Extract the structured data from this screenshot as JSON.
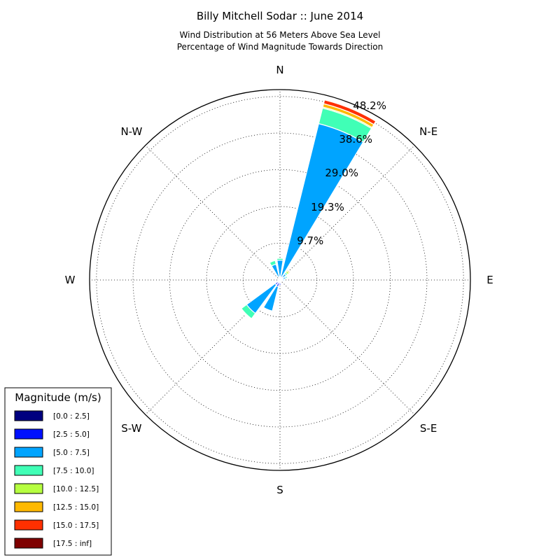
{
  "chart_data": {
    "type": "windrose",
    "title": "Billy Mitchell Sodar :: June 2014",
    "subtitle_lines": [
      "Wind Distribution at 56 Meters Above Sea Level",
      "Percentage of Wind Magnitude Towards Direction"
    ],
    "directions": [
      "N",
      "N-E",
      "E",
      "S-E",
      "S",
      "S-W",
      "W",
      "N-W"
    ],
    "radial_ticks": [
      9.7,
      19.3,
      29.0,
      38.6,
      48.2
    ],
    "radial_tick_labels": [
      "9.7%",
      "19.3%",
      "29.0%",
      "38.6%",
      "48.2%"
    ],
    "rmax": 50,
    "grid": true,
    "legend": {
      "title": "Magnitude (m/s)",
      "placement": "lower-left",
      "bins": [
        {
          "label": "[0.0 : 2.5]",
          "color": "#00007f"
        },
        {
          "label": "[2.5 : 5.0]",
          "color": "#0010ff"
        },
        {
          "label": "[5.0 : 7.5]",
          "color": "#00a4ff"
        },
        {
          "label": "[7.5 : 10.0]",
          "color": "#40ffb6"
        },
        {
          "label": "[10.0 : 12.5]",
          "color": "#b6ff40"
        },
        {
          "label": "[12.5 : 15.0]",
          "color": "#ffb900"
        },
        {
          "label": "[15.0 : 17.5]",
          "color": "#ff3000"
        },
        {
          "label": "[17.5 : inf]",
          "color": "#7f0000"
        }
      ]
    },
    "sectors": [
      {
        "direction_deg": 22.5,
        "cumulative": [
          0.2,
          0.7,
          42.3,
          46.5,
          46.8,
          47.7,
          48.7
        ]
      },
      {
        "direction_deg": 45,
        "cumulative": [
          0.5,
          1.0,
          2.0,
          2.5,
          3.0,
          3.3
        ]
      },
      {
        "direction_deg": 67.5,
        "cumulative": [
          0.3,
          0.8,
          1.6,
          2.0
        ]
      },
      {
        "direction_deg": 90,
        "cumulative": [
          0.3,
          0.7,
          1.2
        ]
      },
      {
        "direction_deg": 112.5,
        "cumulative": [
          0.3,
          0.6
        ]
      },
      {
        "direction_deg": 157.5,
        "cumulative": [
          0.3,
          0.6
        ]
      },
      {
        "direction_deg": 180,
        "cumulative": [
          0.3,
          1.4
        ]
      },
      {
        "direction_deg": 202.5,
        "cumulative": [
          0.4,
          1.8,
          8.4
        ]
      },
      {
        "direction_deg": 225,
        "cumulative": [
          0.4,
          1.6,
          10.9,
          12.6
        ]
      },
      {
        "direction_deg": 337.5,
        "cumulative": [
          0.3,
          0.8,
          4.3,
          5.3
        ]
      },
      {
        "direction_deg": 0,
        "cumulative": [
          0.3,
          0.9,
          5.2,
          5.7
        ]
      }
    ]
  }
}
